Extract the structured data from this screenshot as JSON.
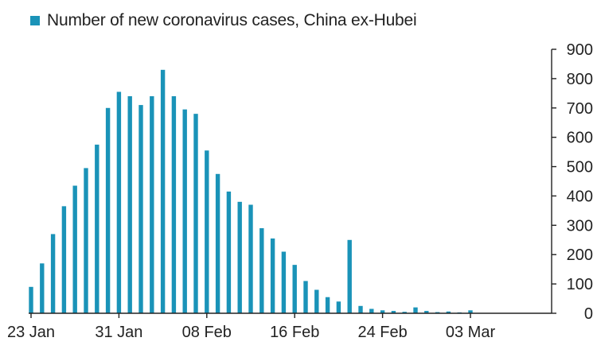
{
  "chart_data": {
    "type": "bar",
    "series": [
      {
        "name": "Number of new coronavirus cases, China ex-Hubei",
        "color": "#1a93b8",
        "values": [
          90,
          170,
          270,
          365,
          435,
          495,
          575,
          700,
          755,
          740,
          710,
          740,
          830,
          740,
          695,
          680,
          555,
          475,
          415,
          380,
          370,
          290,
          255,
          210,
          165,
          110,
          80,
          55,
          40,
          250,
          25,
          15,
          10,
          8,
          5,
          20,
          8,
          4,
          6,
          3,
          10
        ]
      }
    ],
    "start_date": "23 Jan",
    "xticks": [
      "23 Jan",
      "31 Jan",
      "08 Feb",
      "16 Feb",
      "24 Feb",
      "03 Mar"
    ],
    "yticks": [
      "0",
      "100",
      "200",
      "300",
      "400",
      "500",
      "600",
      "700",
      "800",
      "900"
    ],
    "ylim": [
      0,
      900
    ],
    "yaxis_position": "right",
    "grid": false,
    "legend": "top-left",
    "title": "",
    "xlabel": "",
    "ylabel": ""
  }
}
